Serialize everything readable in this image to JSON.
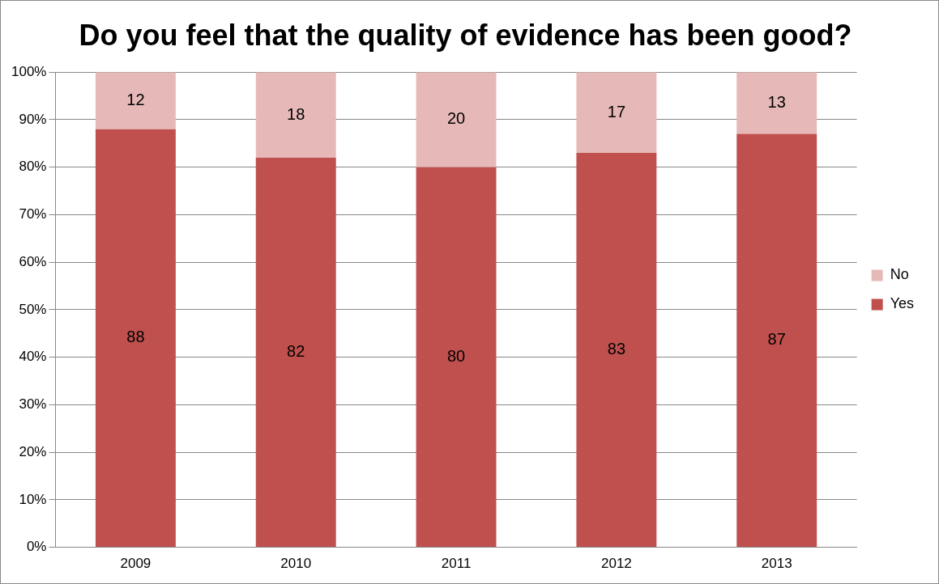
{
  "chart_data": {
    "type": "bar",
    "title": "Do you feel that the quality of evidence has been good?",
    "categories": [
      "2009",
      "2010",
      "2011",
      "2012",
      "2013"
    ],
    "stacked": true,
    "series": [
      {
        "name": "Yes",
        "color": "#c0504d",
        "values": [
          88,
          82,
          80,
          83,
          87
        ]
      },
      {
        "name": "No",
        "color": "#e6b9b8",
        "values": [
          12,
          18,
          20,
          17,
          13
        ]
      }
    ],
    "ylim": [
      0,
      100
    ],
    "yticks": [
      {
        "value": 0,
        "label": "0%"
      },
      {
        "value": 10,
        "label": "10%"
      },
      {
        "value": 20,
        "label": "20%"
      },
      {
        "value": 30,
        "label": "30%"
      },
      {
        "value": 40,
        "label": "40%"
      },
      {
        "value": 50,
        "label": "50%"
      },
      {
        "value": 60,
        "label": "60%"
      },
      {
        "value": 70,
        "label": "70%"
      },
      {
        "value": 80,
        "label": "80%"
      },
      {
        "value": 90,
        "label": "90%"
      },
      {
        "value": 100,
        "label": "100%"
      }
    ],
    "grid": "y",
    "legend": "right",
    "data_labels": true
  }
}
